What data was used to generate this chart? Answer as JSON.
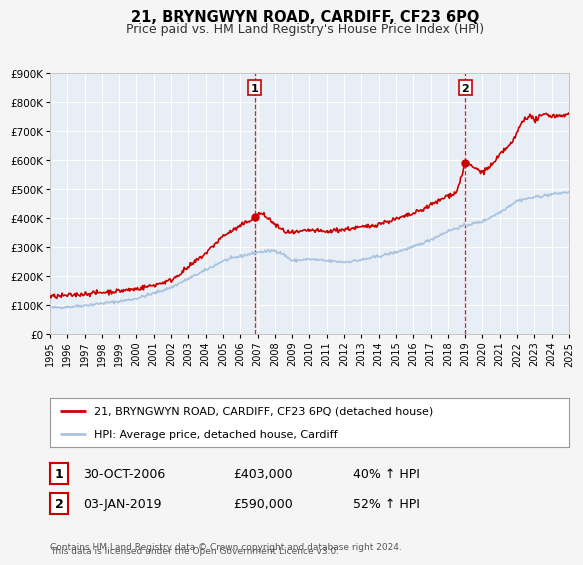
{
  "title": "21, BRYNGWYN ROAD, CARDIFF, CF23 6PQ",
  "subtitle": "Price paid vs. HM Land Registry's House Price Index (HPI)",
  "ylim": [
    0,
    900000
  ],
  "yticks": [
    0,
    100000,
    200000,
    300000,
    400000,
    500000,
    600000,
    700000,
    800000,
    900000
  ],
  "ytick_labels": [
    "£0",
    "£100K",
    "£200K",
    "£300K",
    "£400K",
    "£500K",
    "£600K",
    "£700K",
    "£800K",
    "£900K"
  ],
  "x_start_year": 1995,
  "x_end_year": 2025,
  "hpi_color": "#aac4e0",
  "price_color": "#cc0000",
  "bg_color": "#f5f5f5",
  "plot_bg_color": "#e8eef5",
  "grid_color": "#ffffff",
  "vline_color": "#cc0000",
  "marker1_year": 2006.83,
  "marker1_price": 403000,
  "marker2_year": 2019.01,
  "marker2_price": 590000,
  "legend_label1": "21, BRYNGWYN ROAD, CARDIFF, CF23 6PQ (detached house)",
  "legend_label2": "HPI: Average price, detached house, Cardiff",
  "table_rows": [
    [
      "1",
      "30-OCT-2006",
      "£403,000",
      "40% ↑ HPI"
    ],
    [
      "2",
      "03-JAN-2019",
      "£590,000",
      "52% ↑ HPI"
    ]
  ],
  "footnote1": "Contains HM Land Registry data © Crown copyright and database right 2024.",
  "footnote2": "This data is licensed under the Open Government Licence v3.0.",
  "title_fontsize": 10.5,
  "subtitle_fontsize": 9,
  "tick_fontsize": 7.5,
  "legend_fontsize": 8,
  "table_fontsize": 9,
  "footnote_fontsize": 6.5
}
